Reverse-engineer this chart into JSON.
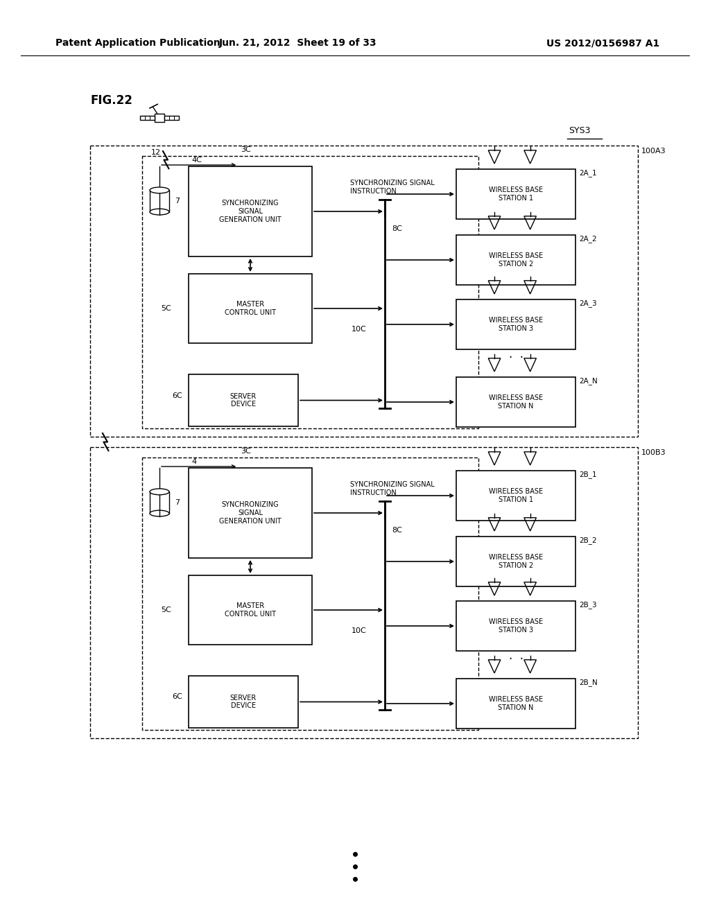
{
  "page_header_left": "Patent Application Publication",
  "page_header_mid": "Jun. 21, 2012  Sheet 19 of 33",
  "page_header_right": "US 2012/0156987 A1",
  "fig_label": "FIG.22",
  "bg_color": "#ffffff",
  "sys_label": "SYS3",
  "top_label": "100A3",
  "bot_label": "100B3",
  "station_labels_A": [
    "2A_1",
    "2A_2",
    "2A_3",
    "2A_N"
  ],
  "station_labels_B": [
    "2B_1",
    "2B_2",
    "2B_3",
    "2B_N"
  ],
  "station_texts": [
    "WIRELESS BASE\nSTATION 1",
    "WIRELESS BASE\nSTATION 2",
    "WIRELESS BASE\nSTATION 3",
    "WIRELESS BASE\nSTATION N"
  ],
  "sync_gen_text": "SYNCHRONIZING\nSIGNAL\nGENERATION UNIT",
  "master_text": "MASTER\nCONTROL UNIT",
  "server_text": "SERVER\nDEVICE",
  "sync_instr_text": "SYNCHRONIZING SIGNAL\nINSTRUCTION"
}
